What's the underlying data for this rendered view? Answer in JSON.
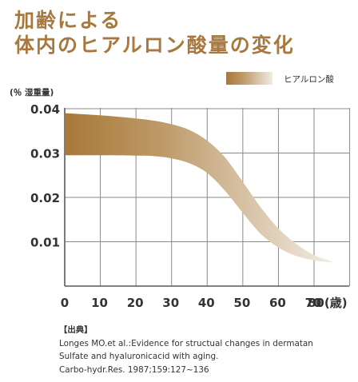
{
  "title": {
    "line1": "加齢による",
    "line2": "体内のヒアルロン酸量の変化"
  },
  "chart_data": {
    "type": "area",
    "ylabel": "(％ 湿重量)",
    "xlabel": "(歳)",
    "x_ticks": [
      0,
      10,
      20,
      30,
      40,
      50,
      60,
      70,
      80
    ],
    "x_tick_labels": [
      "0",
      "10",
      "20",
      "30",
      "40",
      "50",
      "60",
      "70",
      "80(歳)"
    ],
    "y_ticks": [
      0.01,
      0.02,
      0.03,
      0.04
    ],
    "y_tick_labels": [
      "0.01",
      "0.02",
      "0.03",
      "0.04"
    ],
    "xlim": [
      0,
      80
    ],
    "ylim": [
      0,
      0.04
    ],
    "grid": true,
    "legend": {
      "position": "top-right"
    },
    "series": [
      {
        "name": "ヒアルロン酸",
        "color_start": "#a87838",
        "color_end": "#f1ebe3",
        "x": [
          0,
          10,
          20,
          25,
          30,
          35,
          40,
          45,
          50,
          55,
          60,
          65,
          70,
          75
        ],
        "upper": [
          0.039,
          0.0385,
          0.0378,
          0.0373,
          0.0365,
          0.0352,
          0.0328,
          0.029,
          0.0235,
          0.0178,
          0.013,
          0.0095,
          0.007,
          0.0056
        ],
        "lower": [
          0.0295,
          0.0295,
          0.0294,
          0.0293,
          0.0288,
          0.0277,
          0.0255,
          0.0215,
          0.0165,
          0.0118,
          0.0087,
          0.0068,
          0.0058,
          0.0053
        ]
      }
    ]
  },
  "source": {
    "heading": "【出典】",
    "line1": "Longes MO.et al.:Evidence for structual changes in dermatan",
    "line2": "Sulfate and hyaluronicacid with aging.",
    "line3": "Carbo-hydr.Res. 1987;159:127~136"
  }
}
